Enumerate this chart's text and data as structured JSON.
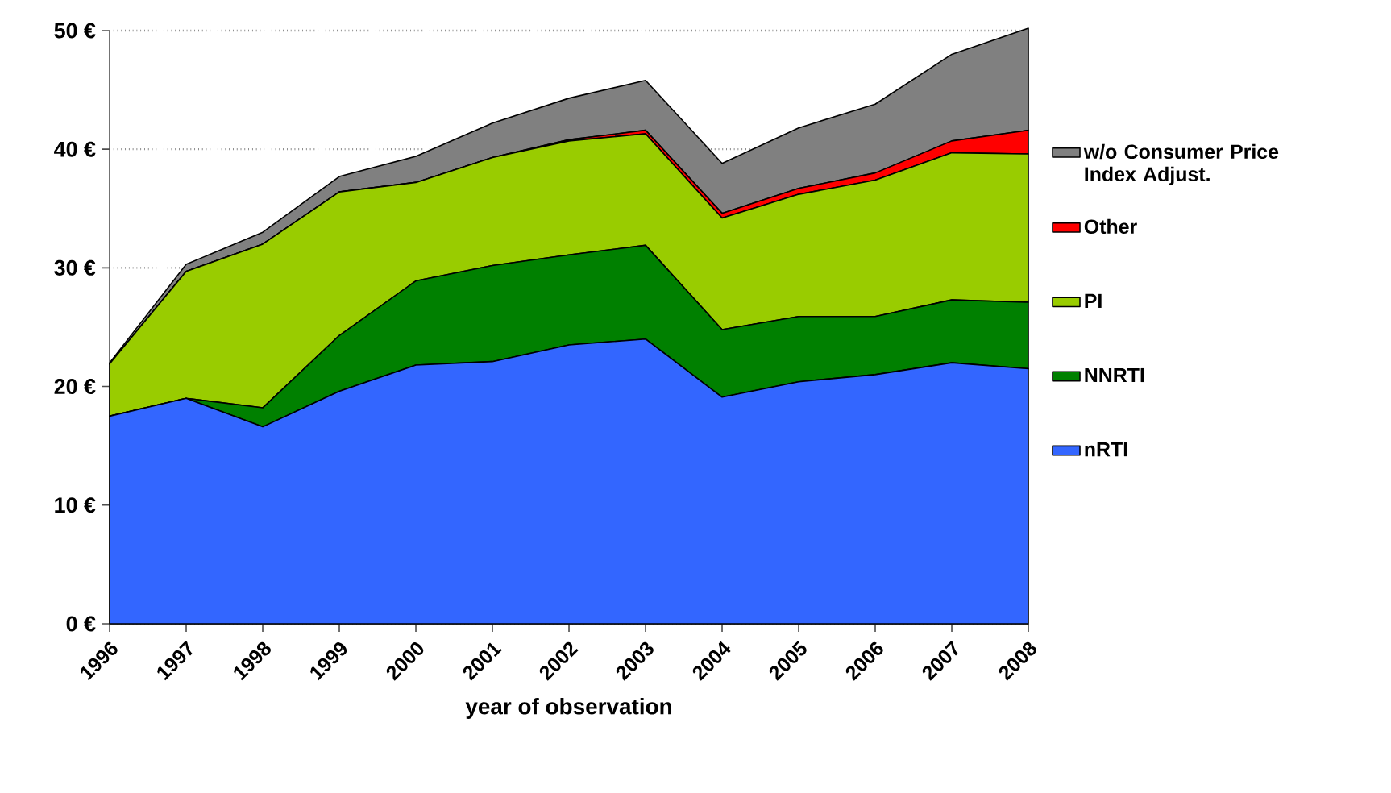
{
  "chart_data": {
    "type": "area",
    "stacked": true,
    "categories": [
      "1996",
      "1997",
      "1998",
      "1999",
      "2000",
      "2001",
      "2002",
      "2003",
      "2004",
      "2005",
      "2006",
      "2007",
      "2008"
    ],
    "xlabel": "year of observation",
    "ylim": [
      0,
      50
    ],
    "yticks": [
      {
        "value": 0,
        "label": "0 €"
      },
      {
        "value": 10,
        "label": "10 €"
      },
      {
        "value": 20,
        "label": "20 €"
      },
      {
        "value": 30,
        "label": "30 €"
      },
      {
        "value": 40,
        "label": "40 €"
      },
      {
        "value": 50,
        "label": "50 €"
      }
    ],
    "grid": "y",
    "legend": "right",
    "series": [
      {
        "name": "nRTI",
        "color": "#3366ff",
        "values": [
          17.5,
          19,
          16.6,
          19.6,
          21.8,
          22.1,
          23.5,
          24,
          19.1,
          20.4,
          21,
          22,
          21.5
        ]
      },
      {
        "name": "NNRTI",
        "color": "#008000",
        "values": [
          0,
          0,
          1.6,
          4.7,
          7.1,
          8.1,
          7.6,
          7.9,
          5.7,
          5.5,
          4.9,
          5.3,
          5.6
        ]
      },
      {
        "name": "PI",
        "color": "#99cc00",
        "values": [
          4.4,
          10.7,
          13.8,
          12.1,
          8.3,
          9.1,
          9.6,
          9.4,
          9.4,
          10.3,
          11.5,
          12.4,
          12.5
        ]
      },
      {
        "name": "Other",
        "color": "#ff0000",
        "values": [
          0,
          0,
          0,
          0,
          0,
          0,
          0.1,
          0.3,
          0.4,
          0.5,
          0.6,
          1.0,
          2.0
        ]
      },
      {
        "name": "w/o Consumer Price Index Adjust.",
        "color": "#808080",
        "values": [
          0.1,
          0.6,
          1.0,
          1.3,
          2.2,
          2.9,
          3.5,
          4.2,
          4.2,
          5.1,
          5.8,
          7.3,
          8.6
        ]
      }
    ]
  }
}
